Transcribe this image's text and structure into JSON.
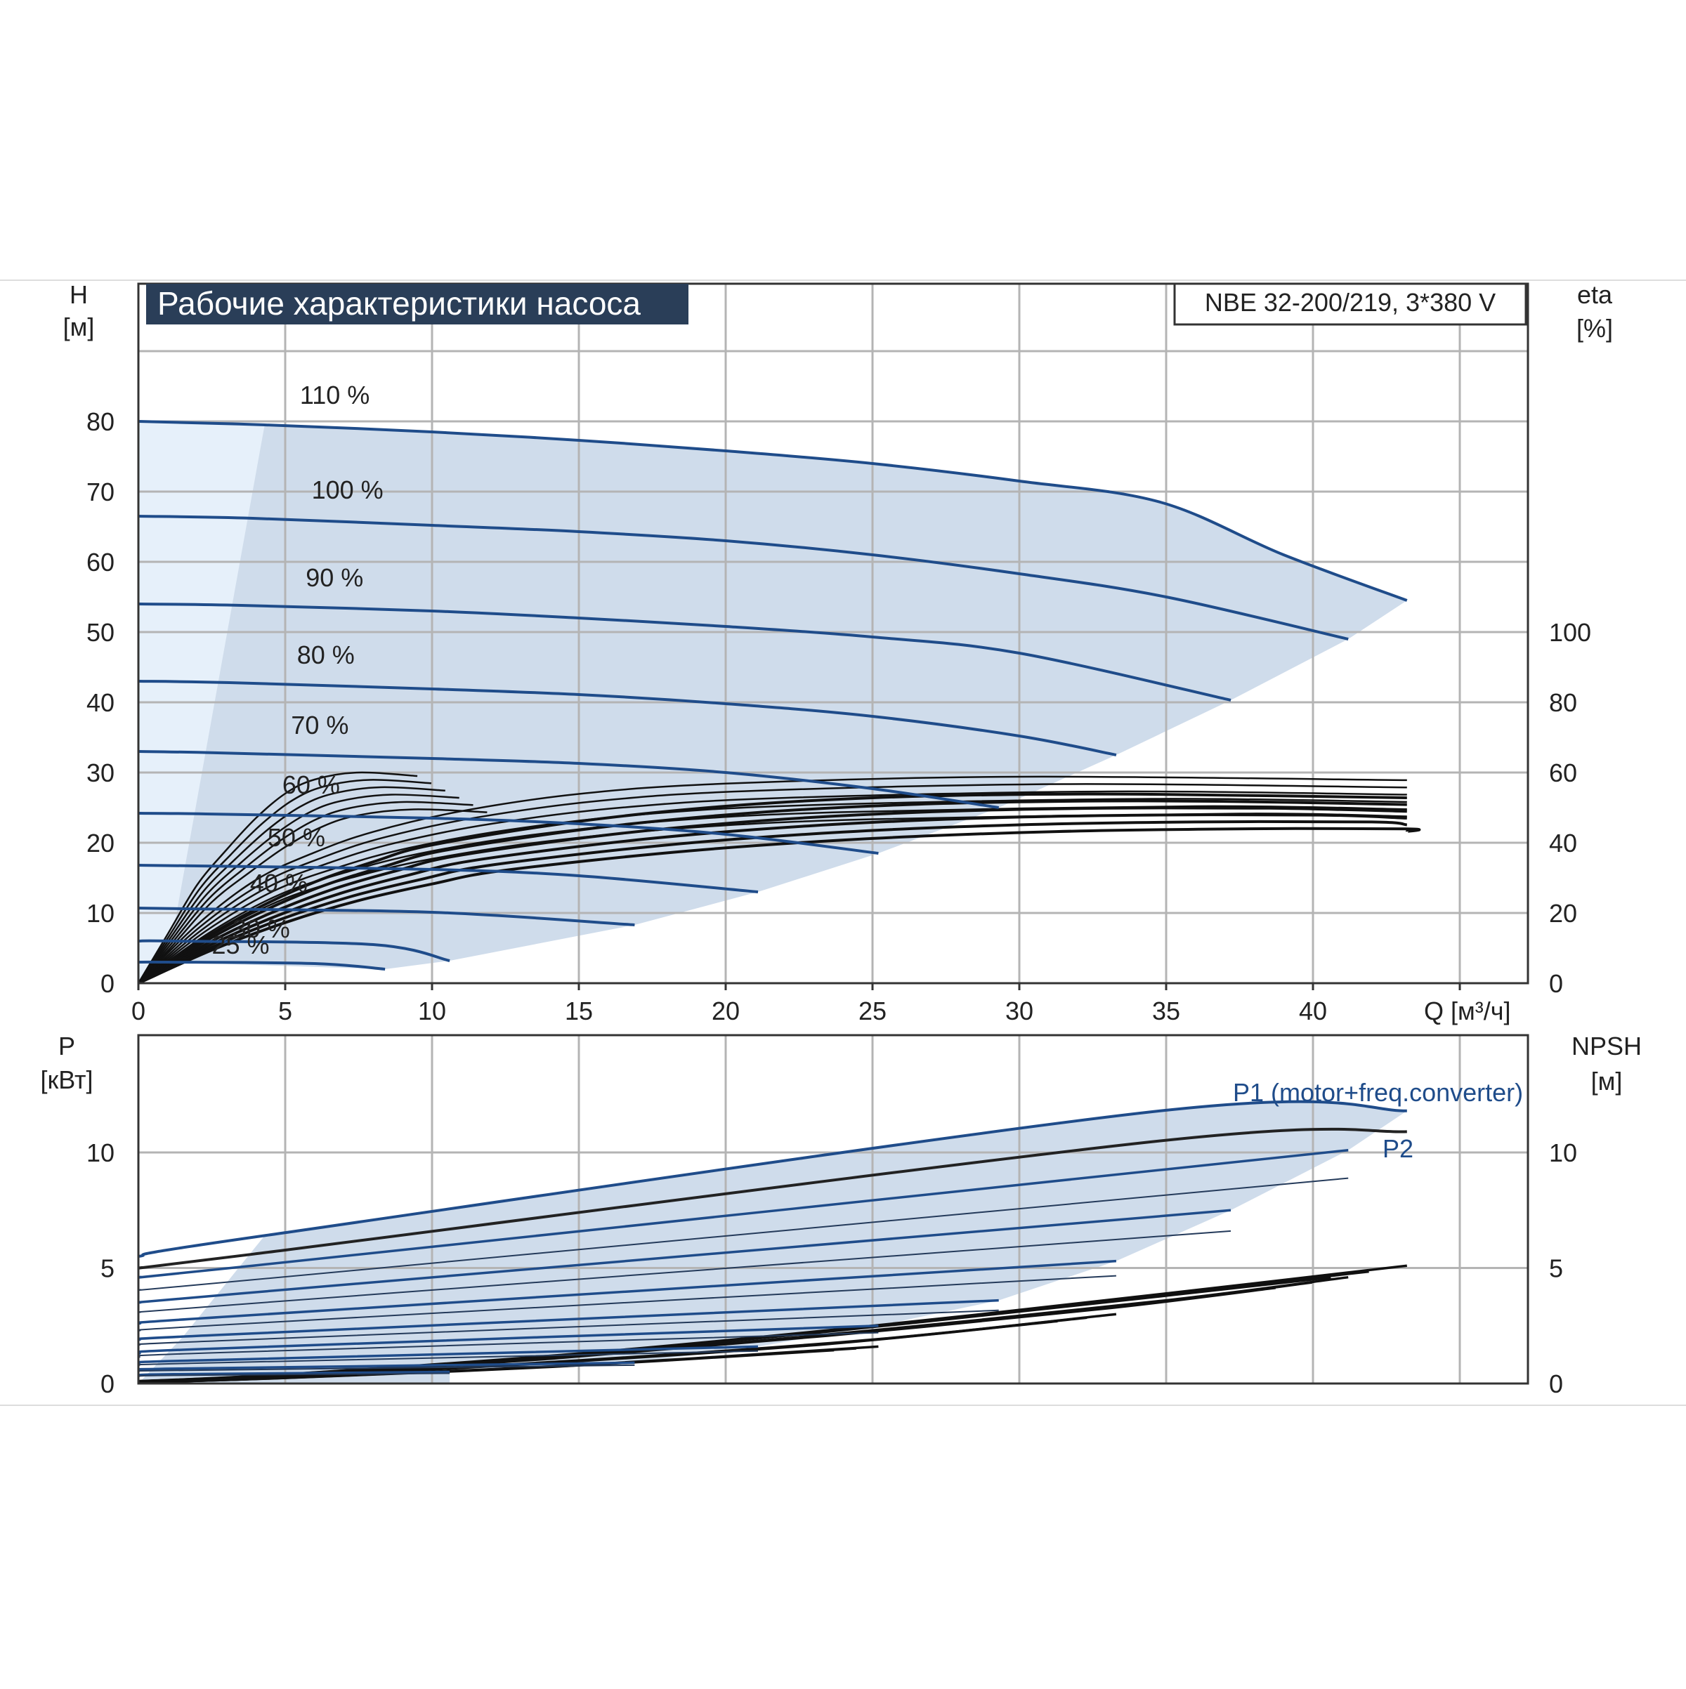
{
  "colors": {
    "curve_blue": "#1f4c8a",
    "region_fill": "#cfdceb",
    "region_light": "#e6f0fa",
    "eff_black": "#111111",
    "grid": "#b4b4b4",
    "title_bg": "#2a3e58"
  },
  "chart_data": [
    {
      "type": "line",
      "title": "Рабочие характеристики насоса",
      "model": "NBE 32-200/219, 3*380 V",
      "ylabel": "H",
      "yunit": "[м]",
      "y2label": "eta",
      "y2unit": "[%]",
      "xlabel": "Q [м³/ч]",
      "xlim": [
        0,
        47.5
      ],
      "ylim": [
        0,
        92
      ],
      "y2range": [
        0,
        100
      ],
      "x_ticks": [
        0,
        5,
        10,
        15,
        20,
        25,
        30,
        35,
        40
      ],
      "y_ticks": [
        0,
        10,
        20,
        30,
        40,
        50,
        60,
        70,
        80
      ],
      "y2_ticks": [
        0,
        20,
        40,
        60,
        80,
        100
      ],
      "grid": true,
      "series": [
        {
          "name": "110 %",
          "x": [
            0,
            4.3,
            10,
            15,
            20,
            25,
            30,
            34.8,
            39,
            43.2
          ],
          "y": [
            80,
            79.5,
            78.5,
            77.3,
            75.8,
            74,
            71.5,
            68.5,
            61,
            54.5
          ]
        },
        {
          "name": "100 %",
          "x": [
            0,
            3.9,
            10,
            15,
            20,
            25,
            30,
            35,
            41.2
          ],
          "y": [
            66.5,
            66.2,
            65.2,
            64.3,
            63,
            61,
            58.3,
            55,
            49
          ]
        },
        {
          "name": "90 %",
          "x": [
            0,
            3.5,
            10,
            15,
            20,
            25,
            30,
            37.2
          ],
          "y": [
            54,
            53.8,
            53,
            52,
            50.8,
            49.3,
            47,
            40.3
          ]
        },
        {
          "name": "80 %",
          "x": [
            0,
            3.1,
            10,
            15,
            20,
            25,
            30,
            33.3
          ],
          "y": [
            43,
            42.8,
            41.9,
            41.1,
            39.8,
            38,
            35.2,
            32.5
          ]
        },
        {
          "name": "70 %",
          "x": [
            0,
            2.7,
            10,
            15,
            20,
            25,
            29.3
          ],
          "y": [
            33,
            32.8,
            32,
            31.3,
            30,
            27.7,
            25
          ]
        },
        {
          "name": "60 %",
          "x": [
            0,
            2.3,
            10,
            15,
            20,
            25.2
          ],
          "y": [
            24.2,
            24.1,
            23.5,
            22.7,
            21.2,
            18.5
          ]
        },
        {
          "name": "50 %",
          "x": [
            0,
            2.0,
            10,
            15,
            21.1
          ],
          "y": [
            16.8,
            16.7,
            16.2,
            15.3,
            13
          ]
        },
        {
          "name": "40 %",
          "x": [
            0,
            1.6,
            10,
            16.9
          ],
          "y": [
            10.7,
            10.6,
            10.1,
            8.3
          ]
        },
        {
          "name": "30 %",
          "x": [
            0,
            1.2,
            8,
            10.6
          ],
          "y": [
            6,
            6,
            5.5,
            3.2
          ]
        },
        {
          "name": "25 %",
          "x": [
            0,
            1.0,
            6,
            8.4
          ],
          "y": [
            3,
            3,
            2.8,
            2
          ]
        }
      ],
      "efficiency_curves_eta_percent": [
        {
          "x": [
            0,
            1,
            2,
            3,
            4,
            5,
            6,
            7.5,
            9.5
          ],
          "y": [
            0,
            14,
            28,
            38,
            47,
            54,
            58,
            60,
            59
          ]
        },
        {
          "x": [
            0,
            2,
            4,
            6,
            8,
            11,
            15,
            20,
            30,
            43.2
          ],
          "y": [
            0,
            17,
            30,
            38,
            44,
            50,
            55,
            58,
            60,
            59
          ]
        },
        {
          "x": [
            0,
            2,
            4,
            6,
            8,
            10,
            15,
            20,
            25,
            30,
            35,
            43.2
          ],
          "y": [
            0,
            12,
            22,
            30,
            36,
            41,
            48,
            52.5,
            55,
            56,
            56,
            55
          ]
        }
      ],
      "region": {
        "upper": "110 %",
        "lower": "25 %"
      },
      "annotations": [
        "110 %",
        "100 %",
        "90 %",
        "80 %",
        "70 %",
        "60 %",
        "50 %",
        "40 %",
        "30 %",
        "25 %"
      ]
    },
    {
      "type": "line",
      "ylabel": "P",
      "yunit": "[кВт]",
      "y2label": "NPSH",
      "y2unit": "[м]",
      "xlim": [
        0,
        47.5
      ],
      "ylim": [
        0,
        14.5
      ],
      "y_ticks": [
        0,
        5,
        10
      ],
      "y2_ticks": [
        0,
        5,
        10
      ],
      "grid": true,
      "series": [
        {
          "name": "P1 (motor+freq.converter)",
          "x": [
            0,
            4.3,
            34.8,
            43.2
          ],
          "y": [
            5.5,
            6.4,
            11.8,
            11.8
          ]
        },
        {
          "name": "P2",
          "x": [
            0,
            3.9,
            34.8,
            43.2
          ],
          "y": [
            5.0,
            5.6,
            10.5,
            10.9
          ]
        },
        {
          "name": "P1 100 %",
          "x": [
            0,
            3.9,
            41.2
          ],
          "y": [
            4.6,
            5.1,
            10.1
          ]
        },
        {
          "name": "P1 90 %",
          "x": [
            0,
            3.5,
            37.2
          ],
          "y": [
            3.5,
            3.9,
            7.5
          ]
        },
        {
          "name": "P1 80 %",
          "x": [
            0,
            3.1,
            33.3
          ],
          "y": [
            2.6,
            2.9,
            5.3
          ]
        },
        {
          "name": "P1 70 %",
          "x": [
            0,
            2.7,
            29.3
          ],
          "y": [
            1.9,
            2.1,
            3.6
          ]
        },
        {
          "name": "P1 60 %",
          "x": [
            0,
            2.3,
            25.2
          ],
          "y": [
            1.3,
            1.5,
            2.5
          ]
        },
        {
          "name": "P1 50 %",
          "x": [
            0,
            2.0,
            21.1
          ],
          "y": [
            0.9,
            1.0,
            1.6
          ]
        },
        {
          "name": "P1 40 %",
          "x": [
            0,
            1.6,
            16.9
          ],
          "y": [
            0.6,
            0.65,
            0.9
          ]
        },
        {
          "name": "P1 30 %",
          "x": [
            0,
            1.2,
            10.6
          ],
          "y": [
            0.35,
            0.4,
            0.5
          ]
        }
      ],
      "npsh_curves": [
        {
          "x": [
            0,
            5,
            15,
            25,
            35,
            43.2
          ],
          "y": [
            0.1,
            0.4,
            1.3,
            2.5,
            3.9,
            5.1
          ]
        },
        {
          "x": [
            0,
            5,
            15,
            25,
            35,
            41.2
          ],
          "y": [
            0.1,
            0.35,
            1.2,
            2.3,
            3.6,
            4.6
          ]
        },
        {
          "x": [
            0,
            5,
            15,
            25,
            33.3
          ],
          "y": [
            0.1,
            0.3,
            1.0,
            1.9,
            3.0
          ]
        },
        {
          "x": [
            0,
            5,
            15,
            25.2
          ],
          "y": [
            0.05,
            0.25,
            0.8,
            1.6
          ]
        }
      ]
    }
  ]
}
